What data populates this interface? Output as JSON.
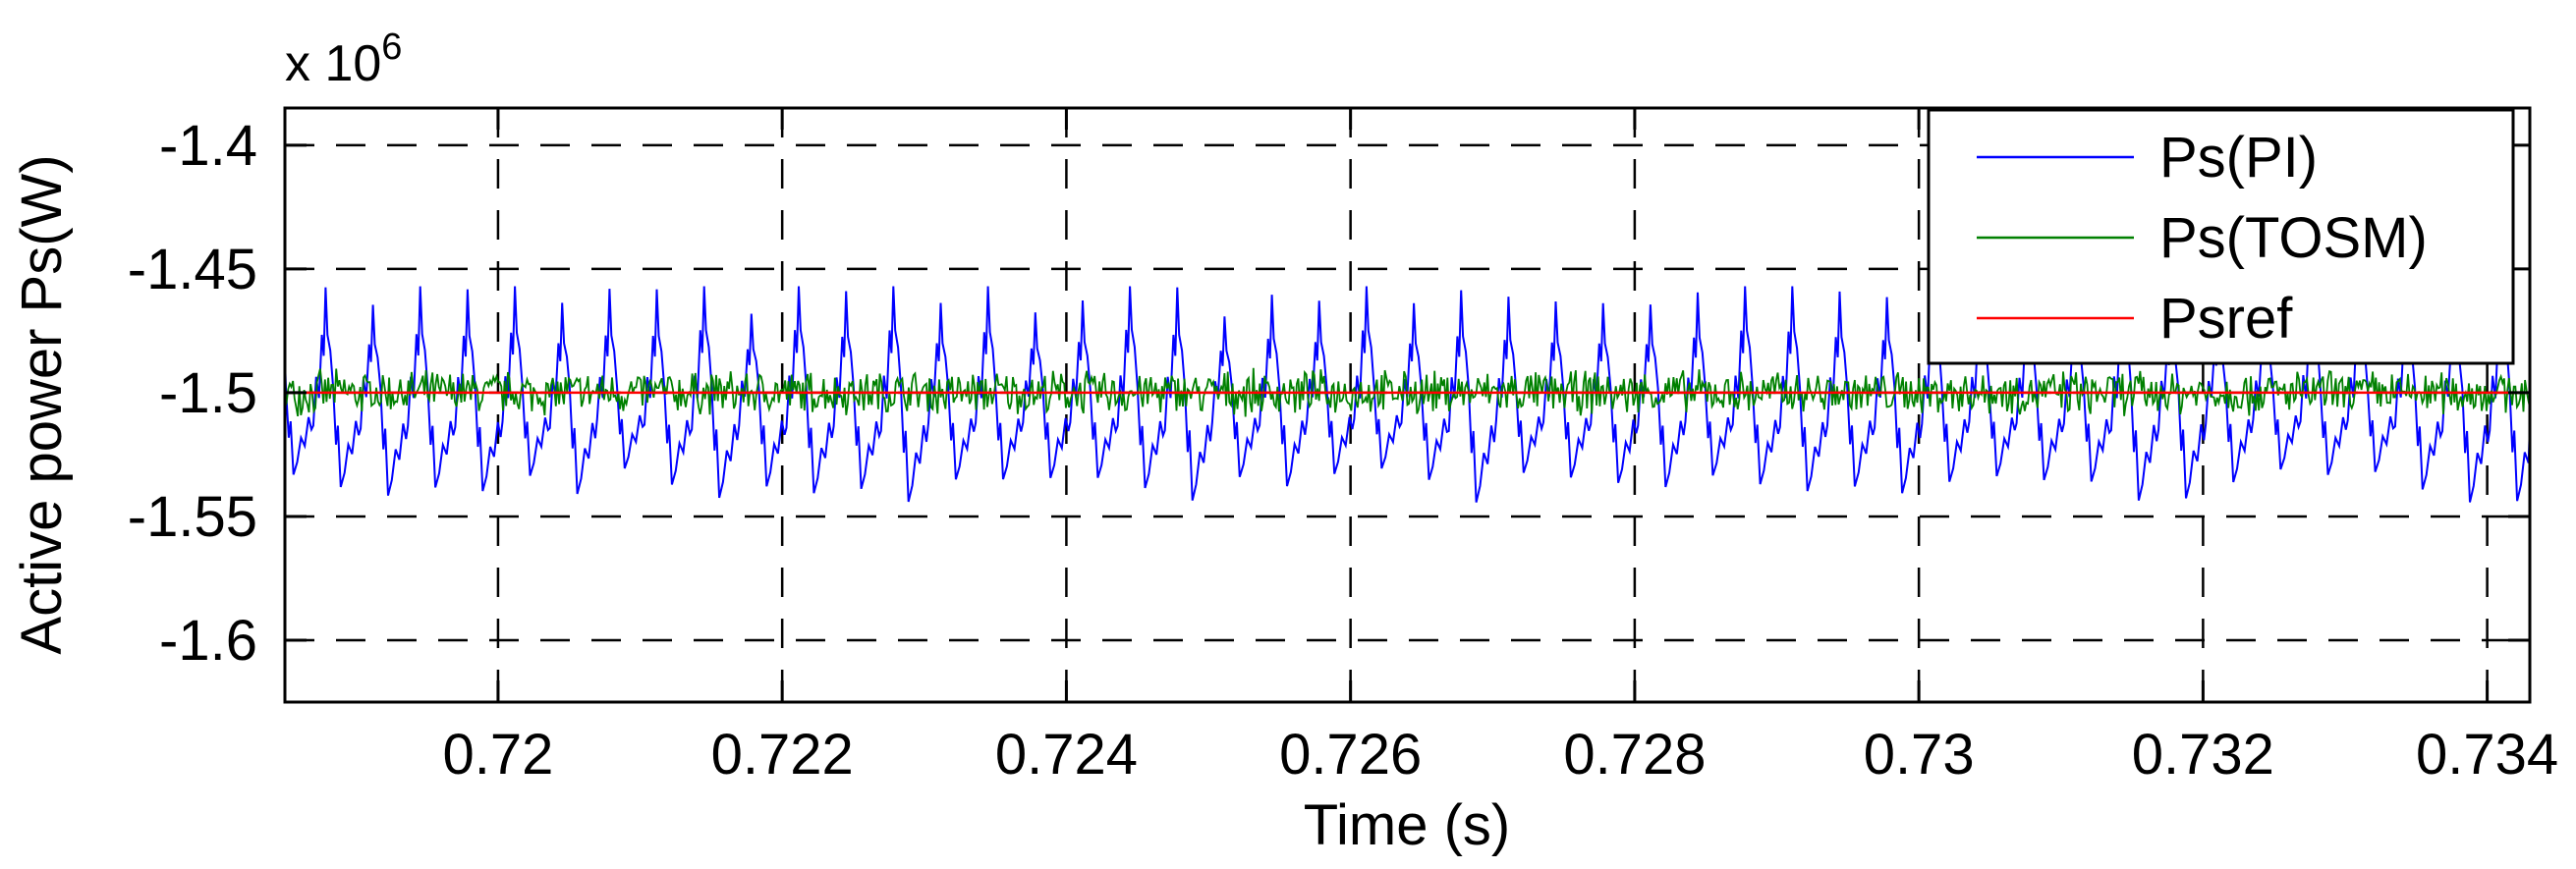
{
  "chart_data": {
    "type": "line",
    "title": "",
    "xlabel": "Time (s)",
    "ylabel": "Active power Ps(W)",
    "y_exponent_base": "x 10",
    "y_exponent_power": "6",
    "xlim": [
      0.7185,
      0.7343
    ],
    "ylim": [
      -1.625,
      -1.385
    ],
    "x_ticks": [
      0.72,
      0.722,
      0.724,
      0.726,
      0.728,
      0.73,
      0.732,
      0.734
    ],
    "x_tick_labels": [
      "0.72",
      "0.722",
      "0.724",
      "0.726",
      "0.728",
      "0.73",
      "0.732",
      "0.734"
    ],
    "y_ticks": [
      -1.4,
      -1.45,
      -1.5,
      -1.55,
      -1.6
    ],
    "y_tick_labels": [
      "-1.4",
      "-1.45",
      "-1.5",
      "-1.55",
      "-1.6"
    ],
    "grid": true,
    "grid_style": "dashed",
    "legend_position": "top-right",
    "series": [
      {
        "name": "Ps(PI)",
        "color": "#0000ff",
        "form": "sawtooth",
        "period": 0.000333,
        "center": -1.5,
        "max_peak": -1.457,
        "min_peak": -1.548,
        "typical_range": [
          -1.535,
          -1.465
        ]
      },
      {
        "name": "Ps(TOSM)",
        "color": "#008000",
        "form": "noise",
        "center": -1.5,
        "range": [
          -1.51,
          -1.49
        ]
      },
      {
        "name": "Psref",
        "color": "#ff0000",
        "form": "constant",
        "value": -1.5
      }
    ]
  }
}
